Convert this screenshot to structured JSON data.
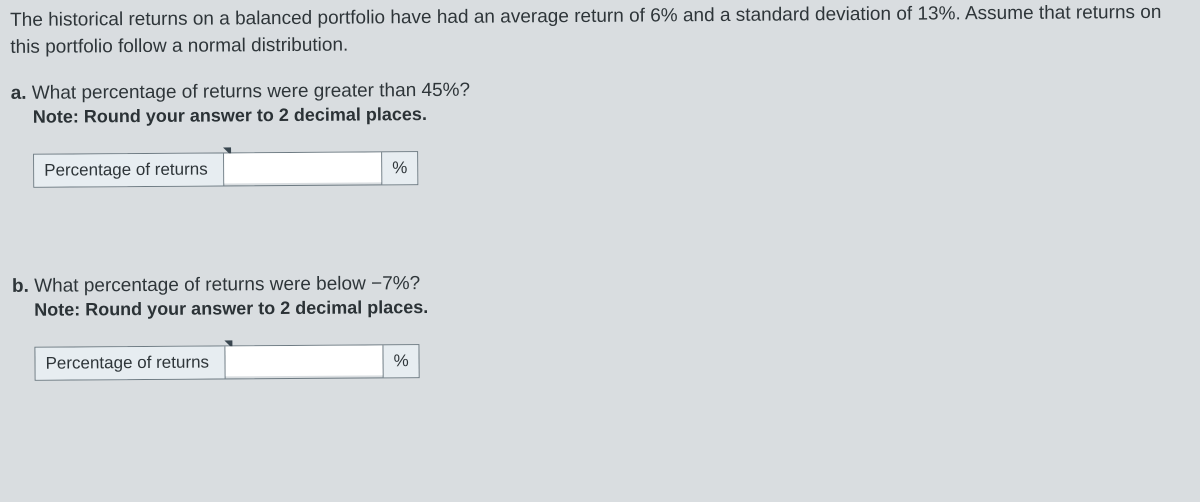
{
  "intro": "The historical returns on a balanced portfolio have have had an average return of 6% and a standard deviation of 13%. Assume that returns on this portfolio follow a normal distribution.",
  "intro_actual": "The historical returns on a balanced portfolio have had an average return of 6% and a standard deviation of 13%. Assume that returns on this portfolio follow a normal distribution.",
  "parts": {
    "a": {
      "letter": "a.",
      "question": "What percentage of returns were greater than 45%?",
      "note": "Note: Round your answer to 2 decimal places.",
      "label": "Percentage of returns",
      "value": "",
      "unit": "%"
    },
    "b": {
      "letter": "b.",
      "question": "What percentage of returns were below −7%?",
      "note": "Note: Round your answer to 2 decimal places.",
      "label": "Percentage of returns",
      "value": "",
      "unit": "%"
    }
  },
  "colors": {
    "page_bg": "#d9dde0",
    "cell_bg": "#e7edf1",
    "input_bg": "#ffffff",
    "border": "#6e7b83",
    "text": "#2b3236"
  }
}
